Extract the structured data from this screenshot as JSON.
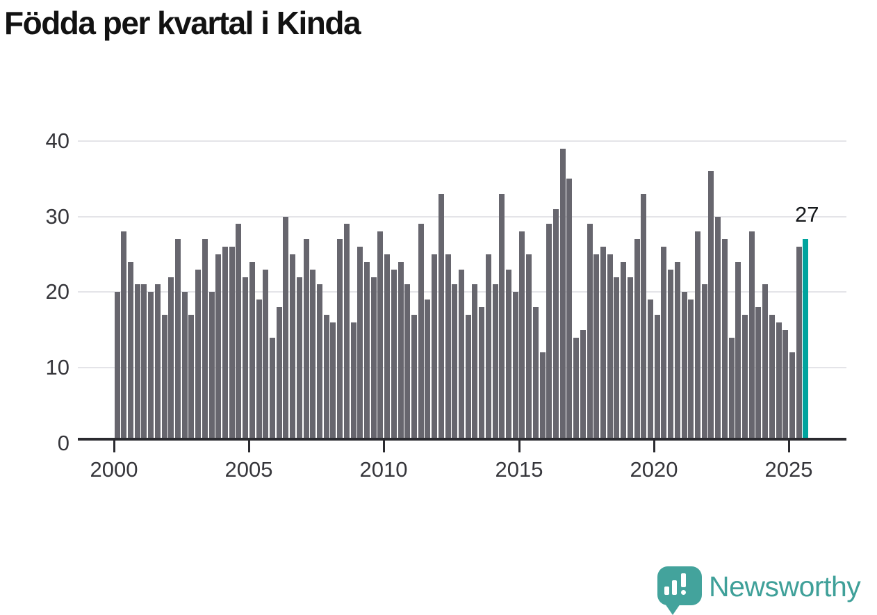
{
  "title": "Födda per kvartal i Kinda",
  "annotation": {
    "last_value_label": "27"
  },
  "branding": {
    "name": "Newsworthy"
  },
  "colors": {
    "bar": "#67666E",
    "highlight": "#00A49E",
    "grid": "#E4E4E8",
    "axis": "#2B2B30",
    "title_text": "#121212",
    "tick_text": "#36363B",
    "annotation_text": "#16191C",
    "logo": "#43A39C"
  },
  "chart_data": {
    "type": "bar",
    "title": "Födda per kvartal i Kinda",
    "xlabel": "",
    "ylabel": "",
    "ylim": [
      0,
      40
    ],
    "yticks": [
      0,
      10,
      20,
      30,
      40
    ],
    "xticks": [
      {
        "label": "2000",
        "quarter_index": 0
      },
      {
        "label": "2005",
        "quarter_index": 20
      },
      {
        "label": "2010",
        "quarter_index": 40
      },
      {
        "label": "2015",
        "quarter_index": 60
      },
      {
        "label": "2020",
        "quarter_index": 80
      },
      {
        "label": "2025",
        "quarter_index": 100
      }
    ],
    "grid": "horizontal",
    "legend_position": "none",
    "highlight_last_bar": true,
    "categories": [
      "2000 Q1",
      "2000 Q2",
      "2000 Q3",
      "2000 Q4",
      "2001 Q1",
      "2001 Q2",
      "2001 Q3",
      "2001 Q4",
      "2002 Q1",
      "2002 Q2",
      "2002 Q3",
      "2002 Q4",
      "2003 Q1",
      "2003 Q2",
      "2003 Q3",
      "2003 Q4",
      "2004 Q1",
      "2004 Q2",
      "2004 Q3",
      "2004 Q4",
      "2005 Q1",
      "2005 Q2",
      "2005 Q3",
      "2005 Q4",
      "2006 Q1",
      "2006 Q2",
      "2006 Q3",
      "2006 Q4",
      "2007 Q1",
      "2007 Q2",
      "2007 Q3",
      "2007 Q4",
      "2008 Q1",
      "2008 Q2",
      "2008 Q3",
      "2008 Q4",
      "2009 Q1",
      "2009 Q2",
      "2009 Q3",
      "2009 Q4",
      "2010 Q1",
      "2010 Q2",
      "2010 Q3",
      "2010 Q4",
      "2011 Q1",
      "2011 Q2",
      "2011 Q3",
      "2011 Q4",
      "2012 Q1",
      "2012 Q2",
      "2012 Q3",
      "2012 Q4",
      "2013 Q1",
      "2013 Q2",
      "2013 Q3",
      "2013 Q4",
      "2014 Q1",
      "2014 Q2",
      "2014 Q3",
      "2014 Q4",
      "2015 Q1",
      "2015 Q2",
      "2015 Q3",
      "2015 Q4",
      "2016 Q1",
      "2016 Q2",
      "2016 Q3",
      "2016 Q4",
      "2017 Q1",
      "2017 Q2",
      "2017 Q3",
      "2017 Q4",
      "2018 Q1",
      "2018 Q2",
      "2018 Q3",
      "2018 Q4",
      "2019 Q1",
      "2019 Q2",
      "2019 Q3",
      "2019 Q4",
      "2020 Q1",
      "2020 Q2",
      "2020 Q3",
      "2020 Q4",
      "2021 Q1",
      "2021 Q2",
      "2021 Q3",
      "2021 Q4",
      "2022 Q1",
      "2022 Q2",
      "2022 Q3",
      "2022 Q4",
      "2023 Q1",
      "2023 Q2",
      "2023 Q3",
      "2023 Q4",
      "2024 Q1",
      "2024 Q2",
      "2024 Q3",
      "2024 Q4",
      "2025 Q1",
      "2025 Q2",
      "2025 Q3"
    ],
    "values": [
      20,
      28,
      24,
      21,
      21,
      20,
      21,
      17,
      22,
      27,
      20,
      17,
      23,
      27,
      20,
      25,
      26,
      26,
      29,
      22,
      24,
      19,
      23,
      14,
      18,
      30,
      25,
      22,
      27,
      23,
      21,
      17,
      16,
      27,
      29,
      16,
      26,
      24,
      22,
      28,
      25,
      23,
      24,
      21,
      17,
      29,
      19,
      25,
      33,
      25,
      21,
      23,
      17,
      21,
      18,
      25,
      21,
      33,
      23,
      20,
      28,
      25,
      18,
      12,
      29,
      31,
      39,
      35,
      14,
      15,
      29,
      25,
      26,
      25,
      22,
      24,
      22,
      27,
      33,
      19,
      17,
      26,
      23,
      24,
      20,
      19,
      28,
      21,
      36,
      30,
      27,
      14,
      24,
      17,
      28,
      18,
      21,
      17,
      16,
      15,
      12,
      26,
      27
    ]
  }
}
